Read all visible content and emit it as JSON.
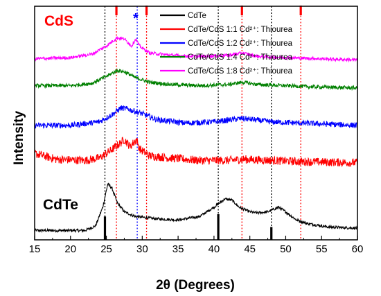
{
  "chart_data": {
    "type": "line",
    "xlabel": "2θ (Degrees)",
    "ylabel": "Intensity",
    "xlim": [
      15,
      60
    ],
    "x_ticks": [
      15,
      20,
      25,
      30,
      35,
      40,
      45,
      50,
      55,
      60
    ],
    "y_scale": "arbitrary units (stacked, offset traces)",
    "legend_position": "top-right",
    "labels": {
      "cds": "CdS",
      "cdte": "CdTe",
      "asterisk": "*"
    },
    "label_colors": {
      "cds": "#ff0000",
      "cdte": "#000000",
      "asterisk": "#0000ff"
    },
    "series": [
      {
        "name": "CdTe",
        "color": "#000000",
        "baseline": 0.05,
        "noise": 0.006,
        "points": [
          [
            15,
            0.04
          ],
          [
            22,
            0.04
          ],
          [
            23.5,
            0.06
          ],
          [
            24.5,
            0.14
          ],
          [
            25.2,
            0.24
          ],
          [
            25.8,
            0.22
          ],
          [
            26.5,
            0.16
          ],
          [
            27.5,
            0.12
          ],
          [
            29,
            0.1
          ],
          [
            32,
            0.09
          ],
          [
            35,
            0.085
          ],
          [
            38,
            0.1
          ],
          [
            40,
            0.14
          ],
          [
            41.5,
            0.175
          ],
          [
            42.5,
            0.17
          ],
          [
            43.5,
            0.14
          ],
          [
            45,
            0.12
          ],
          [
            46,
            0.115
          ],
          [
            47.5,
            0.12
          ],
          [
            49,
            0.14
          ],
          [
            50,
            0.12
          ],
          [
            51.5,
            0.085
          ],
          [
            53,
            0.07
          ],
          [
            56,
            0.055
          ],
          [
            60,
            0.05
          ]
        ]
      },
      {
        "name": "CdTe/CdS 1:1 Cd²⁺: Thiourea",
        "color": "#ff0000",
        "baseline": 0.3,
        "noise": 0.018,
        "points": [
          [
            15,
            0.37
          ],
          [
            18,
            0.345
          ],
          [
            22,
            0.34
          ],
          [
            24,
            0.35
          ],
          [
            25.5,
            0.38
          ],
          [
            27,
            0.415
          ],
          [
            27.5,
            0.43
          ],
          [
            28.3,
            0.4
          ],
          [
            29.2,
            0.43
          ],
          [
            29.6,
            0.39
          ],
          [
            31,
            0.36
          ],
          [
            34,
            0.35
          ],
          [
            38,
            0.34
          ],
          [
            42,
            0.34
          ],
          [
            44,
            0.345
          ],
          [
            48,
            0.34
          ],
          [
            52,
            0.335
          ],
          [
            60,
            0.33
          ]
        ]
      },
      {
        "name": "CdTe/CdS 1:2 Cd²⁺: Thiourea",
        "color": "#0000ff",
        "baseline": 0.48,
        "noise": 0.012,
        "points": [
          [
            15,
            0.49
          ],
          [
            20,
            0.49
          ],
          [
            24,
            0.505
          ],
          [
            26,
            0.54
          ],
          [
            27,
            0.565
          ],
          [
            28,
            0.56
          ],
          [
            29,
            0.55
          ],
          [
            30,
            0.54
          ],
          [
            32,
            0.515
          ],
          [
            36,
            0.5
          ],
          [
            40,
            0.505
          ],
          [
            44,
            0.52
          ],
          [
            48,
            0.505
          ],
          [
            52,
            0.5
          ],
          [
            60,
            0.49
          ]
        ]
      },
      {
        "name": "CdTe/CdS 1:4 Cd²⁺: Thiourea",
        "color": "#008000",
        "baseline": 0.64,
        "noise": 0.008,
        "points": [
          [
            15,
            0.66
          ],
          [
            20,
            0.66
          ],
          [
            23,
            0.67
          ],
          [
            25,
            0.7
          ],
          [
            26.5,
            0.725
          ],
          [
            27.5,
            0.72
          ],
          [
            29,
            0.695
          ],
          [
            31,
            0.675
          ],
          [
            34,
            0.665
          ],
          [
            38,
            0.66
          ],
          [
            42,
            0.665
          ],
          [
            44,
            0.675
          ],
          [
            46,
            0.665
          ],
          [
            50,
            0.66
          ],
          [
            54,
            0.655
          ],
          [
            60,
            0.65
          ]
        ]
      },
      {
        "name": "CdTe/CdS 1:8 Cd²⁺: Thiourea",
        "color": "#ff00ff",
        "baseline": 0.77,
        "noise": 0.007,
        "points": [
          [
            15,
            0.775
          ],
          [
            20,
            0.78
          ],
          [
            23,
            0.795
          ],
          [
            25,
            0.83
          ],
          [
            26.5,
            0.865
          ],
          [
            27.5,
            0.86
          ],
          [
            28.5,
            0.83
          ],
          [
            29.1,
            0.86
          ],
          [
            29.6,
            0.83
          ],
          [
            31,
            0.8
          ],
          [
            34,
            0.79
          ],
          [
            38,
            0.785
          ],
          [
            42,
            0.79
          ],
          [
            44,
            0.8
          ],
          [
            46,
            0.785
          ],
          [
            50,
            0.78
          ],
          [
            55,
            0.775
          ],
          [
            60,
            0.77
          ]
        ]
      }
    ],
    "reference_lines": [
      {
        "x": 24.8,
        "color": "#000000"
      },
      {
        "x": 26.4,
        "color": "#ff0000"
      },
      {
        "x": 29.3,
        "color": "#0000ff"
      },
      {
        "x": 30.6,
        "color": "#ff0000"
      },
      {
        "x": 40.6,
        "color": "#000000"
      },
      {
        "x": 43.9,
        "color": "#ff0000"
      },
      {
        "x": 48.0,
        "color": "#000000"
      },
      {
        "x": 52.1,
        "color": "#ff0000"
      }
    ],
    "cds_markers": [
      26.4,
      30.6,
      43.9,
      52.1
    ],
    "cdte_markers": [
      {
        "x": 24.8,
        "height": 0.1
      },
      {
        "x": 40.6,
        "height": 0.11
      },
      {
        "x": 48.0,
        "height": 0.055
      }
    ]
  }
}
